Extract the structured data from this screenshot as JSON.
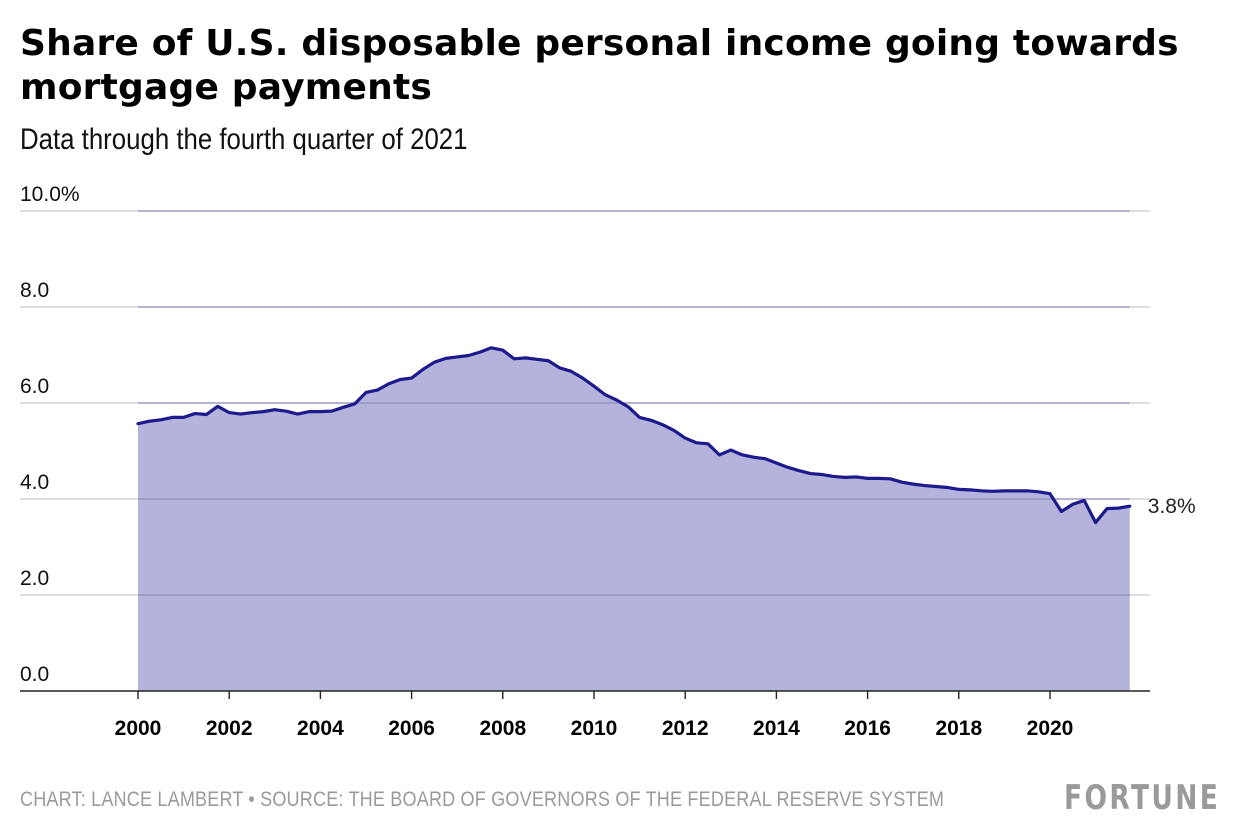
{
  "header": {
    "title": "Share of U.S. disposable personal income going towards mortgage payments",
    "subtitle": "Data through the fourth quarter of 2021"
  },
  "footer": {
    "source": "CHART: LANCE LAMBERT • SOURCE: THE BOARD OF GOVERNORS OF THE FEDERAL RESERVE SYSTEM",
    "logo": "FORTUNE"
  },
  "colors": {
    "line": "#1c1a8c",
    "fill": "#b3b3db",
    "grid": "#cccccc",
    "axis": "#222222",
    "footer": "#9a9a9a"
  },
  "chart_data": {
    "type": "area",
    "title": "Share of U.S. disposable personal income going towards mortgage payments",
    "subtitle": "Data through the fourth quarter of 2021",
    "xlabel": "",
    "ylabel": "",
    "xlim": [
      1998.4,
      2022.3
    ],
    "ylim": [
      0,
      10
    ],
    "y_ticks": [
      {
        "value": 0,
        "label": "0.0"
      },
      {
        "value": 2,
        "label": "2.0"
      },
      {
        "value": 4,
        "label": "4.0"
      },
      {
        "value": 6,
        "label": "6.0"
      },
      {
        "value": 8,
        "label": "8.0"
      },
      {
        "value": 10,
        "label": "10.0%"
      }
    ],
    "x_ticks": [
      {
        "value": 2000,
        "label": "2000"
      },
      {
        "value": 2002,
        "label": "2002"
      },
      {
        "value": 2004,
        "label": "2004"
      },
      {
        "value": 2006,
        "label": "2006"
      },
      {
        "value": 2008,
        "label": "2008"
      },
      {
        "value": 2010,
        "label": "2010"
      },
      {
        "value": 2012,
        "label": "2012"
      },
      {
        "value": 2014,
        "label": "2014"
      },
      {
        "value": 2016,
        "label": "2016"
      },
      {
        "value": 2018,
        "label": "2018"
      },
      {
        "value": 2020,
        "label": "2020"
      }
    ],
    "grid": true,
    "end_label": "3.8%",
    "series": [
      {
        "x": [
          2000.0,
          2000.25,
          2000.5,
          2000.75,
          2001.0,
          2001.25,
          2001.5,
          2001.75,
          2002.0,
          2002.25,
          2002.5,
          2002.75,
          2003.0,
          2003.25,
          2003.5,
          2003.75,
          2004.0,
          2004.25,
          2004.5,
          2004.75,
          2005.0,
          2005.25,
          2005.5,
          2005.75,
          2006.0,
          2006.25,
          2006.5,
          2006.75,
          2007.0,
          2007.25,
          2007.5,
          2007.75,
          2008.0,
          2008.25,
          2008.5,
          2008.75,
          2009.0,
          2009.25,
          2009.5,
          2009.75,
          2010.0,
          2010.25,
          2010.5,
          2010.75,
          2011.0,
          2011.25,
          2011.5,
          2011.75,
          2012.0,
          2012.25,
          2012.5,
          2012.75,
          2013.0,
          2013.25,
          2013.5,
          2013.75,
          2014.0,
          2014.25,
          2014.5,
          2014.75,
          2015.0,
          2015.25,
          2015.5,
          2015.75,
          2016.0,
          2016.25,
          2016.5,
          2016.75,
          2017.0,
          2017.25,
          2017.5,
          2017.75,
          2018.0,
          2018.25,
          2018.5,
          2018.75,
          2019.0,
          2019.25,
          2019.5,
          2019.75,
          2020.0,
          2020.25,
          2020.5,
          2020.75,
          2021.0,
          2021.25,
          2021.5,
          2021.75
        ],
        "y": [
          5.57,
          5.62,
          5.65,
          5.7,
          5.7,
          5.78,
          5.76,
          5.93,
          5.8,
          5.77,
          5.8,
          5.82,
          5.86,
          5.83,
          5.77,
          5.82,
          5.82,
          5.83,
          5.91,
          5.98,
          6.22,
          6.27,
          6.4,
          6.49,
          6.52,
          6.7,
          6.85,
          6.93,
          6.96,
          6.99,
          7.06,
          7.15,
          7.1,
          6.92,
          6.94,
          6.91,
          6.88,
          6.73,
          6.66,
          6.52,
          6.35,
          6.17,
          6.06,
          5.92,
          5.7,
          5.64,
          5.55,
          5.43,
          5.27,
          5.17,
          5.15,
          4.92,
          5.02,
          4.92,
          4.87,
          4.84,
          4.75,
          4.66,
          4.59,
          4.53,
          4.51,
          4.47,
          4.45,
          4.46,
          4.43,
          4.43,
          4.42,
          4.35,
          4.31,
          4.28,
          4.26,
          4.24,
          4.2,
          4.19,
          4.17,
          4.16,
          4.17,
          4.17,
          4.17,
          4.15,
          4.11,
          3.74,
          3.89,
          3.97,
          3.51,
          3.8,
          3.81,
          3.85
        ]
      }
    ]
  }
}
